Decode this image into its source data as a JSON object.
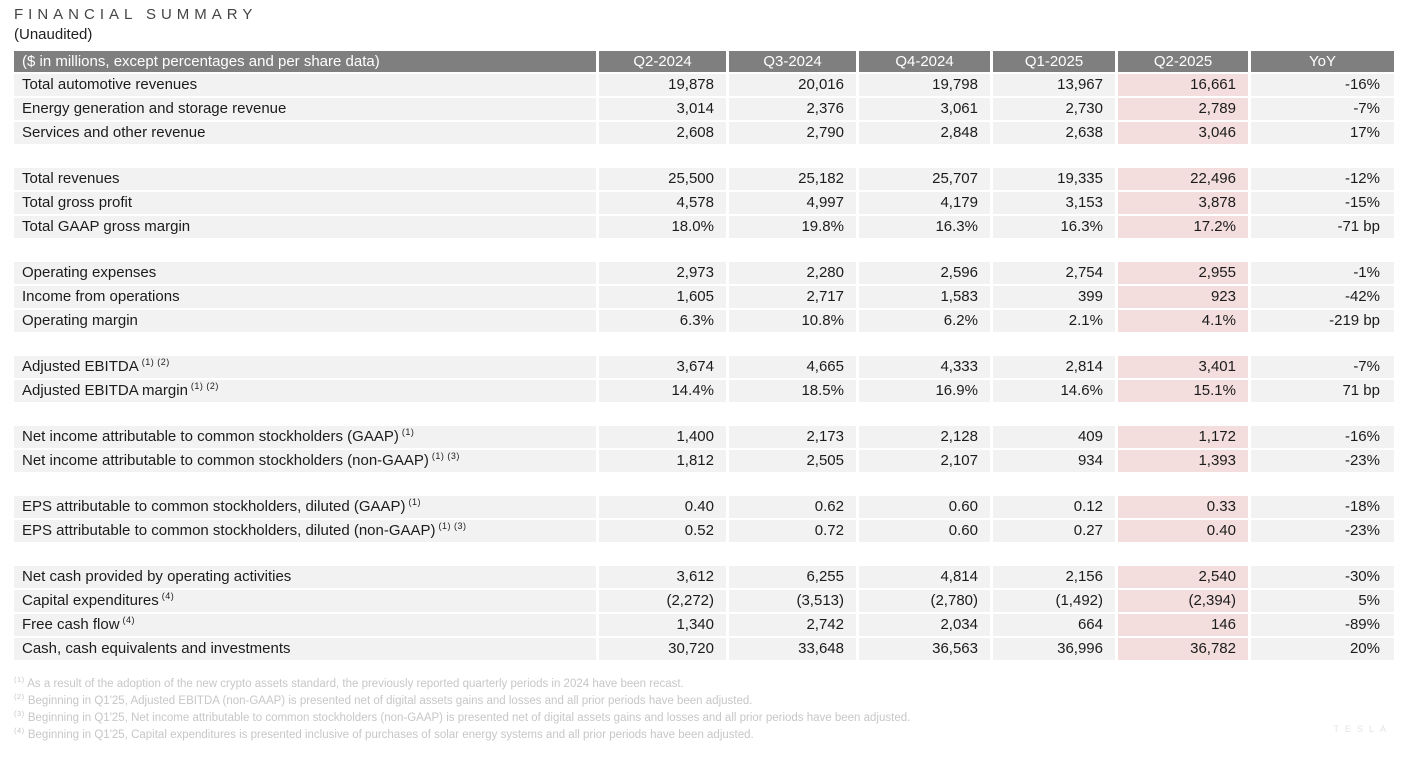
{
  "title": "FINANCIAL SUMMARY",
  "subtitle": "(Unaudited)",
  "colors": {
    "header_bg": "#7f7f7f",
    "header_text": "#ffffff",
    "row_bg": "#f2f2f2",
    "highlight_bg": "#f3dddd",
    "footnote_text": "#c7c7c7"
  },
  "table": {
    "header_label": "($ in millions, except percentages and per share data)",
    "columns": [
      "Q2-2024",
      "Q3-2024",
      "Q4-2024",
      "Q1-2025",
      "Q2-2025",
      "YoY"
    ],
    "highlighted_column": "Q2-2025",
    "groups": [
      {
        "rows": [
          {
            "label": "Total automotive revenues",
            "sup": "",
            "values": [
              "19,878",
              "20,016",
              "19,798",
              "13,967",
              "16,661",
              "-16%"
            ]
          },
          {
            "label": "Energy generation and storage revenue",
            "sup": "",
            "values": [
              "3,014",
              "2,376",
              "3,061",
              "2,730",
              "2,789",
              "-7%"
            ]
          },
          {
            "label": "Services and other revenue",
            "sup": "",
            "values": [
              "2,608",
              "2,790",
              "2,848",
              "2,638",
              "3,046",
              "17%"
            ]
          }
        ]
      },
      {
        "rows": [
          {
            "label": "Total revenues",
            "sup": "",
            "values": [
              "25,500",
              "25,182",
              "25,707",
              "19,335",
              "22,496",
              "-12%"
            ]
          },
          {
            "label": "Total gross profit",
            "sup": "",
            "values": [
              "4,578",
              "4,997",
              "4,179",
              "3,153",
              "3,878",
              "-15%"
            ]
          },
          {
            "label": "Total GAAP gross margin",
            "sup": "",
            "values": [
              "18.0%",
              "19.8%",
              "16.3%",
              "16.3%",
              "17.2%",
              "-71 bp"
            ]
          }
        ]
      },
      {
        "rows": [
          {
            "label": "Operating expenses",
            "sup": "",
            "values": [
              "2,973",
              "2,280",
              "2,596",
              "2,754",
              "2,955",
              "-1%"
            ]
          },
          {
            "label": "Income from operations",
            "sup": "",
            "values": [
              "1,605",
              "2,717",
              "1,583",
              "399",
              "923",
              "-42%"
            ]
          },
          {
            "label": "Operating margin",
            "sup": "",
            "values": [
              "6.3%",
              "10.8%",
              "6.2%",
              "2.1%",
              "4.1%",
              "-219 bp"
            ]
          }
        ]
      },
      {
        "rows": [
          {
            "label": "Adjusted EBITDA",
            "sup": " (1) (2)",
            "values": [
              "3,674",
              "4,665",
              "4,333",
              "2,814",
              "3,401",
              "-7%"
            ]
          },
          {
            "label": "Adjusted EBITDA margin",
            "sup": " (1) (2)",
            "values": [
              "14.4%",
              "18.5%",
              "16.9%",
              "14.6%",
              "15.1%",
              "71 bp"
            ]
          }
        ]
      },
      {
        "rows": [
          {
            "label": "Net income attributable to common stockholders (GAAP)",
            "sup": " (1)",
            "values": [
              "1,400",
              "2,173",
              "2,128",
              "409",
              "1,172",
              "-16%"
            ]
          },
          {
            "label": "Net income attributable to common stockholders (non-GAAP)",
            "sup": " (1) (3)",
            "values": [
              "1,812",
              "2,505",
              "2,107",
              "934",
              "1,393",
              "-23%"
            ]
          }
        ]
      },
      {
        "rows": [
          {
            "label": "EPS attributable to common stockholders, diluted (GAAP)",
            "sup": " (1)",
            "values": [
              "0.40",
              "0.62",
              "0.60",
              "0.12",
              "0.33",
              "-18%"
            ]
          },
          {
            "label": "EPS attributable to common stockholders, diluted (non-GAAP)",
            "sup": " (1) (3)",
            "values": [
              "0.52",
              "0.72",
              "0.60",
              "0.27",
              "0.40",
              "-23%"
            ]
          }
        ]
      },
      {
        "rows": [
          {
            "label": "Net cash provided by operating activities",
            "sup": "",
            "values": [
              "3,612",
              "6,255",
              "4,814",
              "2,156",
              "2,540",
              "-30%"
            ]
          },
          {
            "label": "Capital expenditures",
            "sup": " (4)",
            "values": [
              "(2,272)",
              "(3,513)",
              "(2,780)",
              "(1,492)",
              "(2,394)",
              "5%"
            ]
          },
          {
            "label": "Free cash flow",
            "sup": " (4)",
            "values": [
              "1,340",
              "2,742",
              "2,034",
              "664",
              "146",
              "-89%"
            ]
          },
          {
            "label": "Cash, cash equivalents and investments",
            "sup": "",
            "values": [
              "30,720",
              "33,648",
              "36,563",
              "36,996",
              "36,782",
              "20%"
            ]
          }
        ]
      }
    ]
  },
  "footnotes": [
    {
      "marker": "(1)",
      "text": " As a result of the adoption of the new crypto assets standard, the previously reported quarterly periods in 2024 have been recast."
    },
    {
      "marker": "(2)",
      "text": " Beginning in Q1'25, Adjusted EBITDA (non-GAAP) is presented net of digital assets gains and losses and all prior periods have been adjusted."
    },
    {
      "marker": "(3)",
      "text": " Beginning in Q1'25, Net income attributable to common stockholders (non-GAAP) is presented net of digital assets gains and losses and all prior periods have been adjusted."
    },
    {
      "marker": "(4)",
      "text": " Beginning in Q1'25, Capital expenditures is presented inclusive of purchases of solar energy systems and all prior periods have been adjusted."
    }
  ],
  "watermark": "TESLA"
}
